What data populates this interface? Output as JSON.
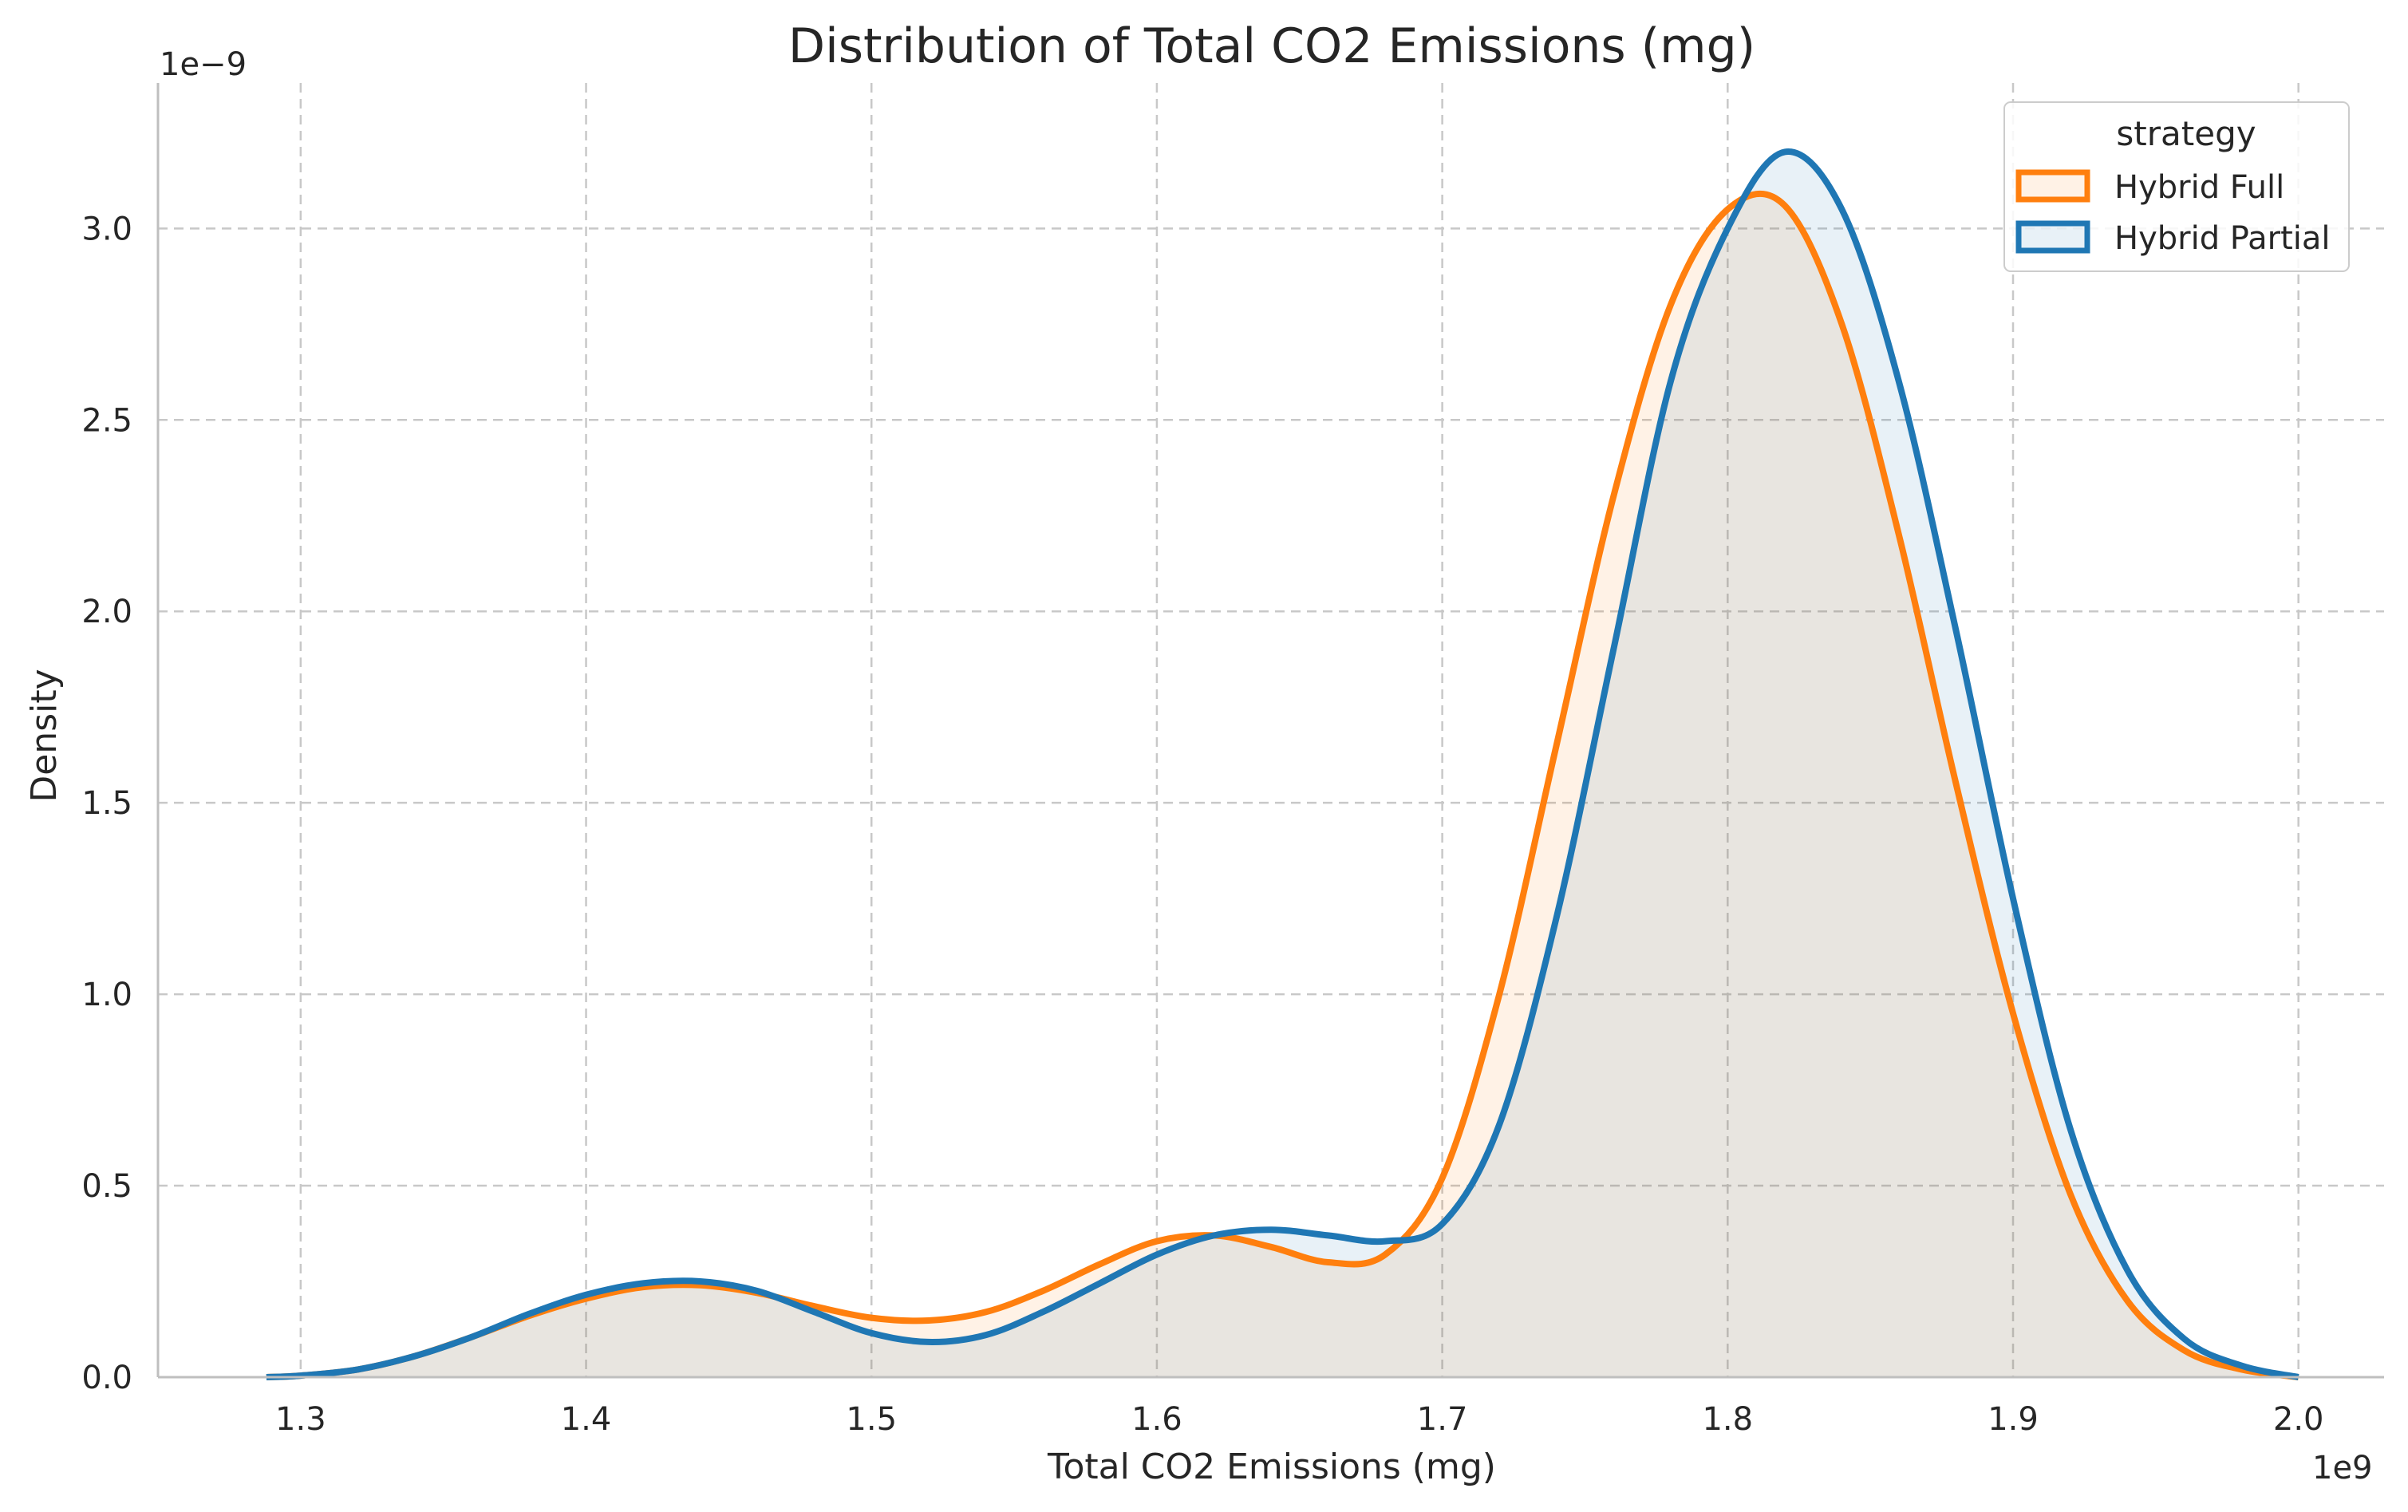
{
  "chart_data": {
    "type": "kde",
    "title": "Distribution of Total CO2 Emissions (mg)",
    "xlabel": "Total CO2 Emissions (mg)",
    "ylabel": "Density",
    "x_offset_label": "1e9",
    "y_offset_label": "1e−9",
    "xlim": [
      1.25,
      2.03
    ],
    "ylim": [
      0.0,
      3.38
    ],
    "x_ticks": [
      1.3,
      1.4,
      1.5,
      1.6,
      1.7,
      1.8,
      1.9,
      2.0
    ],
    "x_tick_labels": [
      "1.3",
      "1.4",
      "1.5",
      "1.6",
      "1.7",
      "1.8",
      "1.9",
      "2.0"
    ],
    "y_ticks": [
      0.0,
      0.5,
      1.0,
      1.5,
      2.0,
      2.5,
      3.0
    ],
    "y_tick_labels": [
      "0.0",
      "0.5",
      "1.0",
      "1.5",
      "2.0",
      "2.5",
      "3.0"
    ],
    "grid": true,
    "legend": {
      "title": "strategy",
      "position": "top-right"
    },
    "series": [
      {
        "name": "Hybrid Full",
        "color": "#ff7f0e",
        "fill": "#ff7f0e",
        "x": [
          1.288,
          1.3,
          1.32,
          1.34,
          1.36,
          1.38,
          1.4,
          1.42,
          1.44,
          1.46,
          1.48,
          1.5,
          1.52,
          1.54,
          1.56,
          1.58,
          1.6,
          1.62,
          1.64,
          1.66,
          1.68,
          1.7,
          1.72,
          1.74,
          1.76,
          1.78,
          1.8,
          1.82,
          1.84,
          1.86,
          1.88,
          1.9,
          1.92,
          1.94,
          1.96,
          1.98,
          2.0
        ],
        "y": [
          0.0,
          0.004,
          0.02,
          0.055,
          0.105,
          0.16,
          0.205,
          0.235,
          0.24,
          0.22,
          0.185,
          0.155,
          0.148,
          0.17,
          0.225,
          0.295,
          0.355,
          0.37,
          0.34,
          0.3,
          0.32,
          0.52,
          1.0,
          1.65,
          2.3,
          2.8,
          3.05,
          3.06,
          2.75,
          2.2,
          1.55,
          0.95,
          0.48,
          0.2,
          0.07,
          0.02,
          0.0
        ]
      },
      {
        "name": "Hybrid Partial",
        "color": "#1f77b4",
        "fill": "#1f77b4",
        "x": [
          1.288,
          1.3,
          1.32,
          1.34,
          1.36,
          1.38,
          1.4,
          1.42,
          1.44,
          1.46,
          1.48,
          1.5,
          1.52,
          1.54,
          1.56,
          1.58,
          1.6,
          1.62,
          1.64,
          1.66,
          1.68,
          1.7,
          1.72,
          1.74,
          1.76,
          1.78,
          1.8,
          1.82,
          1.84,
          1.86,
          1.88,
          1.9,
          1.92,
          1.94,
          1.96,
          1.98,
          2.0
        ],
        "y": [
          0.0,
          0.004,
          0.02,
          0.055,
          0.105,
          0.165,
          0.215,
          0.245,
          0.25,
          0.225,
          0.17,
          0.115,
          0.092,
          0.11,
          0.17,
          0.245,
          0.32,
          0.37,
          0.385,
          0.37,
          0.355,
          0.4,
          0.66,
          1.2,
          1.9,
          2.6,
          3.0,
          3.2,
          3.05,
          2.6,
          1.95,
          1.25,
          0.65,
          0.28,
          0.1,
          0.03,
          0.0
        ]
      }
    ]
  }
}
